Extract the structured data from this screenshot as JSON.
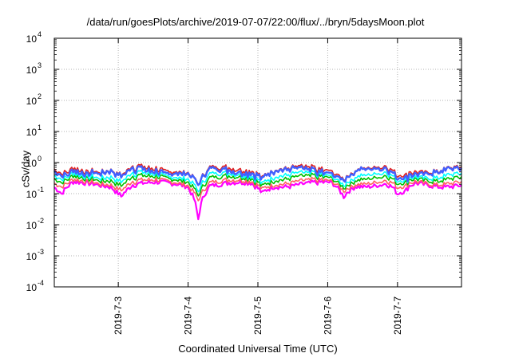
{
  "chart_data": {
    "type": "line",
    "title": "/data/run/goesPlots/archive/2019-07-07/22:00/flux/../bryn/5daysMoon.plot",
    "xlabel": "Coordinated Universal Time (UTC)",
    "ylabel": "cSv/day",
    "y_scale": "log",
    "ylim": [
      0.0001,
      10000
    ],
    "xlim": [
      "2019-07-02 02:00",
      "2019-07-07 22:00"
    ],
    "x_tick_labels": [
      "2019-7-3",
      "2019-7-4",
      "2019-7-5",
      "2019-7-6",
      "2019-7-7"
    ],
    "y_tick_labels": [
      {
        "base": "10",
        "exp": "-4"
      },
      {
        "base": "10",
        "exp": "-3"
      },
      {
        "base": "10",
        "exp": "-2"
      },
      {
        "base": "10",
        "exp": "-1"
      },
      {
        "base": "10",
        "exp": "0"
      },
      {
        "base": "10",
        "exp": "1"
      },
      {
        "base": "10",
        "exp": "2"
      },
      {
        "base": "10",
        "exp": "3"
      },
      {
        "base": "10",
        "exp": "4"
      }
    ],
    "grid": true,
    "legend": "none",
    "series_colors": [
      "#ff00ff",
      "#ff6060",
      "#00c000",
      "#00ffff",
      "#e02020",
      "#4060ff"
    ],
    "dips": [
      {
        "time": "2019-07-02 04:30",
        "depth": 0.55
      },
      {
        "time": "2019-07-03 01:00",
        "depth": 0.5
      },
      {
        "time": "2019-07-04 03:30",
        "depth": 0.95
      },
      {
        "time": "2019-07-05 01:30",
        "depth": 0.45
      },
      {
        "time": "2019-07-06 05:30",
        "depth": 0.6
      },
      {
        "time": "2019-07-07 00:00",
        "depth": 0.5
      },
      {
        "time": "2019-07-07 02:30",
        "depth": 0.4
      }
    ],
    "series": [
      {
        "color": "#ff00ff",
        "base": 0.2,
        "min": 0.015
      },
      {
        "color": "#ff6060",
        "base": 0.24,
        "min": 0.05
      },
      {
        "color": "#00c000",
        "base": 0.32,
        "min": 0.07
      },
      {
        "color": "#00ffff",
        "base": 0.4,
        "min": 0.08
      },
      {
        "color": "#e02020",
        "base": 0.62,
        "min": 0.09
      },
      {
        "color": "#4060ff",
        "base": 0.55,
        "min": 0.08
      }
    ]
  }
}
